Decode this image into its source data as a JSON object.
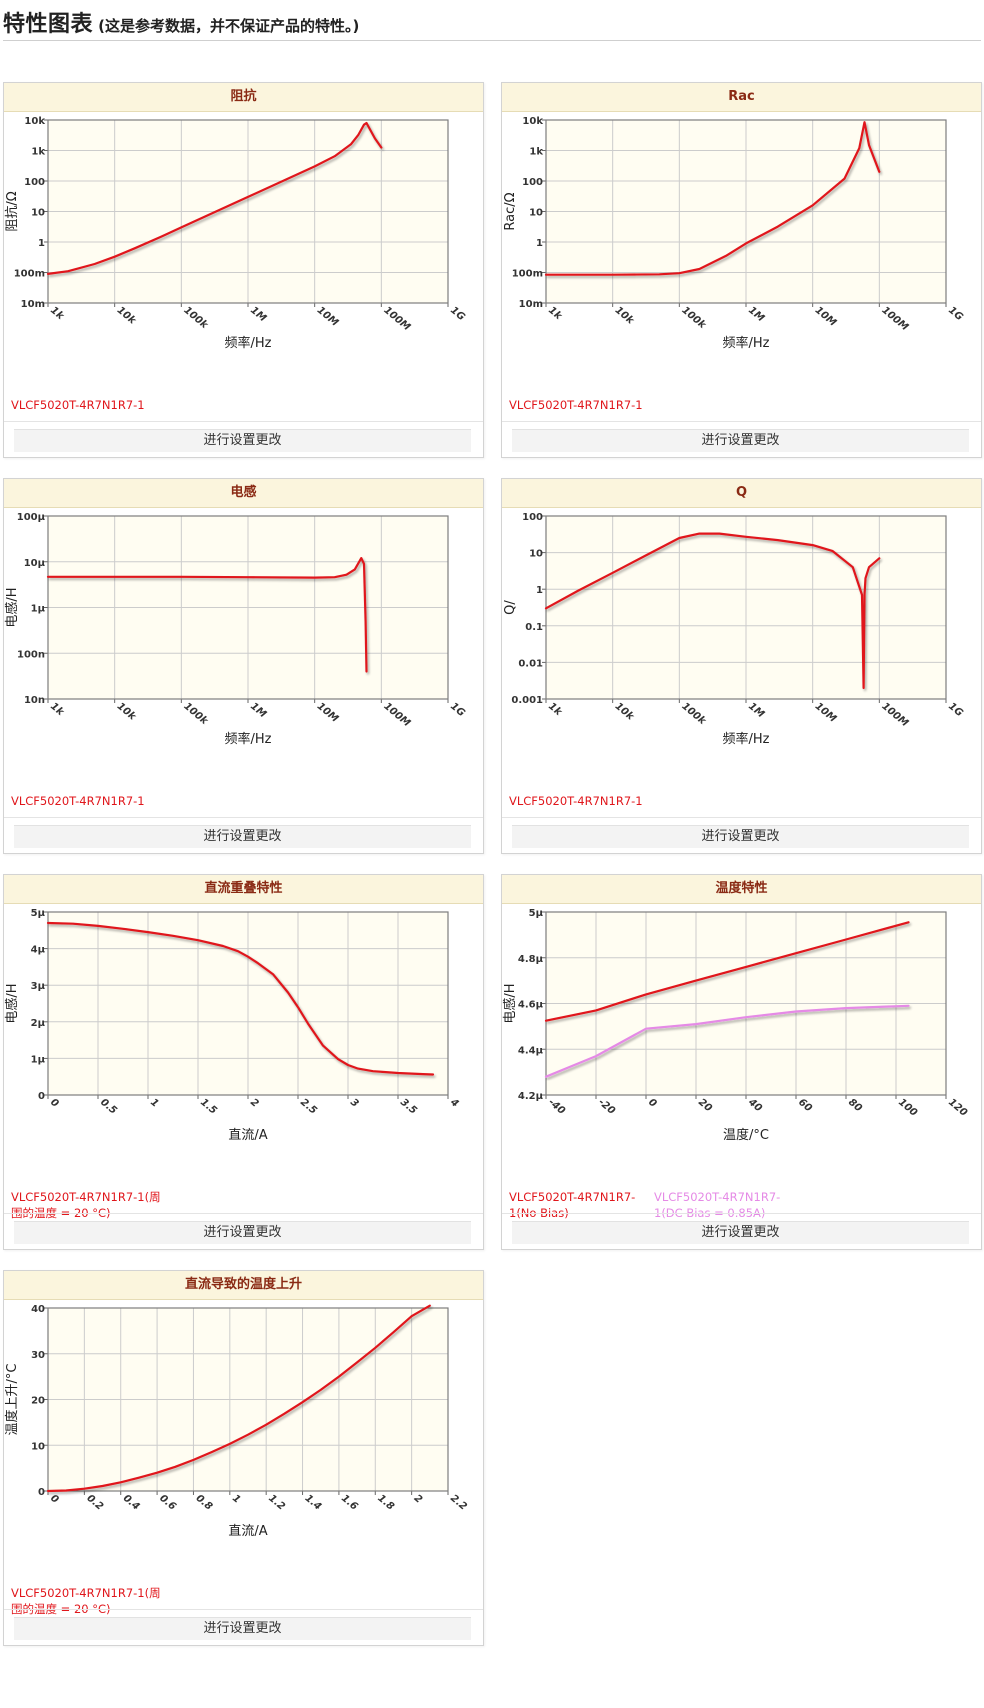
{
  "page": {
    "title": "特性图表",
    "subtitle": "(这是参考数据，并不保证产品的特性。)"
  },
  "colors": {
    "red": "#e0161b",
    "pink": "#e58ae6",
    "plotbg": "#fffdf2",
    "grid": "#cccccc",
    "title": "#8a2a14"
  },
  "charts": [
    {
      "title": "阻抗",
      "button": "进行设置更改",
      "legend": [
        {
          "label": "VLCF5020T-4R7N1R7-1",
          "color": "#e0161b"
        }
      ],
      "chart_data": {
        "type": "line",
        "xscale": "log",
        "yscale": "log",
        "xlabel": "频率/Hz",
        "ylabel": "阻抗/Ω",
        "xlim": [
          1000,
          1000000000
        ],
        "ylim": [
          0.01,
          10000
        ],
        "xticks": [
          "1k",
          "10k",
          "100k",
          "1M",
          "10M",
          "100M",
          "1G"
        ],
        "yticks": [
          "10m",
          "100m",
          "1",
          "10",
          "100",
          "1k",
          "10k"
        ],
        "series": [
          {
            "name": "VLCF5020T-4R7N1R7-1",
            "color": "#e0161b",
            "x": [
              1000,
              2000,
              5000,
              10000,
              20000,
              50000,
              100000,
              1000000,
              10000000,
              20000000,
              35000000,
              45000000,
              55000000,
              60000000,
              80000000,
              100000000
            ],
            "y": [
              0.09,
              0.11,
              0.19,
              0.33,
              0.62,
              1.5,
              3.0,
              30,
              300,
              650,
              1600,
              3200,
              7000,
              8000,
              2500,
              1250
            ]
          }
        ]
      }
    },
    {
      "title": "Rac",
      "button": "进行设置更改",
      "legend": [
        {
          "label": "VLCF5020T-4R7N1R7-1",
          "color": "#e0161b"
        }
      ],
      "chart_data": {
        "type": "line",
        "xscale": "log",
        "yscale": "log",
        "xlabel": "频率/Hz",
        "ylabel": "Rac/Ω",
        "xlim": [
          1000,
          1000000000
        ],
        "ylim": [
          0.01,
          10000
        ],
        "xticks": [
          "1k",
          "10k",
          "100k",
          "1M",
          "10M",
          "100M",
          "1G"
        ],
        "yticks": [
          "10m",
          "100m",
          "1",
          "10",
          "100",
          "1k",
          "10k"
        ],
        "series": [
          {
            "name": "VLCF5020T-4R7N1R7-1",
            "color": "#e0161b",
            "x": [
              1000,
              10000,
              50000,
              100000,
              200000,
              500000,
              1000000,
              3000000,
              10000000,
              30000000,
              50000000,
              60000000,
              70000000,
              100000000
            ],
            "y": [
              0.085,
              0.085,
              0.087,
              0.095,
              0.13,
              0.35,
              0.9,
              3.2,
              16,
              120,
              1200,
              8500,
              1500,
              200
            ]
          }
        ]
      }
    },
    {
      "title": "电感",
      "button": "进行设置更改",
      "legend": [
        {
          "label": "VLCF5020T-4R7N1R7-1",
          "color": "#e0161b"
        }
      ],
      "chart_data": {
        "type": "line",
        "xscale": "log",
        "yscale": "log",
        "xlabel": "频率/Hz",
        "ylabel": "电感/H",
        "xlim": [
          1000,
          1000000000
        ],
        "ylim": [
          1e-08,
          0.0001
        ],
        "xticks": [
          "1k",
          "10k",
          "100k",
          "1M",
          "10M",
          "100M",
          "1G"
        ],
        "yticks": [
          "10n",
          "100n",
          "1μ",
          "10μ",
          "100μ"
        ],
        "series": [
          {
            "name": "VLCF5020T-4R7N1R7-1",
            "color": "#e0161b",
            "x": [
              1000,
              10000,
              100000,
              1000000,
              10000000,
              20000000,
              30000000,
              40000000,
              50000000,
              55000000,
              58000000,
              60000000
            ],
            "y": [
              4.7e-06,
              4.7e-06,
              4.7e-06,
              4.6e-06,
              4.5e-06,
              4.6e-06,
              5.2e-06,
              6.8e-06,
              1.2e-05,
              9e-06,
              5e-07,
              4e-08
            ]
          }
        ]
      }
    },
    {
      "title": "Q",
      "button": "进行设置更改",
      "legend": [
        {
          "label": "VLCF5020T-4R7N1R7-1",
          "color": "#e0161b"
        }
      ],
      "chart_data": {
        "type": "line",
        "xscale": "log",
        "yscale": "log",
        "xlabel": "频率/Hz",
        "ylabel": "Q/",
        "xlim": [
          1000,
          1000000000
        ],
        "ylim": [
          0.001,
          100
        ],
        "xticks": [
          "1k",
          "10k",
          "100k",
          "1M",
          "10M",
          "100M",
          "1G"
        ],
        "yticks": [
          "0.001",
          "0.01",
          "0.1",
          "1",
          "10",
          "100"
        ],
        "series": [
          {
            "name": "VLCF5020T-4R7N1R7-1",
            "color": "#e0161b",
            "x": [
              1000,
              3000,
              10000,
              30000,
              100000,
              200000,
              400000,
              1000000,
              3000000,
              10000000,
              20000000,
              40000000,
              55000000,
              58000000,
              60000000,
              62000000,
              70000000,
              100000000
            ],
            "y": [
              0.3,
              0.9,
              2.8,
              8,
              25,
              33,
              33,
              27,
              22,
              16,
              11,
              4,
              0.7,
              0.002,
              0.7,
              2,
              4,
              7
            ]
          }
        ]
      }
    },
    {
      "title": "直流重叠特性",
      "button": "进行设置更改",
      "legend": [
        {
          "label": "VLCF5020T-4R7N1R7-1(周围的温度 = 20 °C)",
          "color": "#e0161b"
        }
      ],
      "chart_data": {
        "type": "line",
        "xscale": "linear",
        "yscale": "linear",
        "xlabel": "直流/A",
        "ylabel": "电感/H",
        "xlim": [
          0,
          4
        ],
        "ylim": [
          0,
          5
        ],
        "xticks": [
          "0",
          "0.5",
          "1",
          "1.5",
          "2",
          "2.5",
          "3",
          "3.5",
          "4"
        ],
        "yticks": [
          "0",
          "1μ",
          "2μ",
          "3μ",
          "4μ",
          "5μ"
        ],
        "series": [
          {
            "name": "VLCF5020T-4R7N1R7-1(周围的温度 = 20 °C)",
            "color": "#e0161b",
            "x": [
              0,
              0.25,
              0.5,
              0.75,
              1,
              1.25,
              1.5,
              1.75,
              1.9,
              2.0,
              2.1,
              2.25,
              2.4,
              2.5,
              2.6,
              2.75,
              2.9,
              3.0,
              3.1,
              3.25,
              3.5,
              3.75,
              3.85
            ],
            "y": [
              4.7,
              4.68,
              4.62,
              4.54,
              4.45,
              4.35,
              4.23,
              4.07,
              3.93,
              3.78,
              3.6,
              3.3,
              2.8,
              2.4,
              1.95,
              1.35,
              0.98,
              0.82,
              0.72,
              0.65,
              0.6,
              0.57,
              0.56
            ]
          }
        ]
      }
    },
    {
      "title": "温度特性",
      "button": "进行设置更改",
      "legend": [
        {
          "label": "VLCF5020T-4R7N1R7-1(No Bias)",
          "color": "#e0161b"
        },
        {
          "label": "VLCF5020T-4R7N1R7-1(DC Bias = 0.85A)",
          "color": "#e58ae6"
        }
      ],
      "chart_data": {
        "type": "line",
        "xscale": "linear",
        "yscale": "linear",
        "xlabel": "温度/°C",
        "ylabel": "电感/H",
        "xlim": [
          -40,
          120
        ],
        "ylim": [
          4.2,
          5.0
        ],
        "xticks": [
          "-40",
          "-20",
          "0",
          "20",
          "40",
          "60",
          "80",
          "100",
          "120"
        ],
        "yticks": [
          "4.2μ",
          "4.4μ",
          "4.6μ",
          "4.8μ",
          "5μ"
        ],
        "series": [
          {
            "name": "VLCF5020T-4R7N1R7-1(No Bias)",
            "color": "#e0161b",
            "x": [
              -40,
              -20,
              0,
              20,
              40,
              60,
              80,
              105
            ],
            "y": [
              4.525,
              4.57,
              4.64,
              4.7,
              4.76,
              4.82,
              4.88,
              4.955
            ]
          },
          {
            "name": "VLCF5020T-4R7N1R7-1(DC Bias = 0.85A)",
            "color": "#e58ae6",
            "x": [
              -40,
              -20,
              0,
              20,
              40,
              60,
              80,
              105
            ],
            "y": [
              4.28,
              4.37,
              4.49,
              4.51,
              4.54,
              4.565,
              4.58,
              4.59
            ]
          }
        ]
      }
    },
    {
      "title": "直流导致的温度上升",
      "button": "进行设置更改",
      "legend": [
        {
          "label": "VLCF5020T-4R7N1R7-1(周围的温度 = 20 °C)",
          "color": "#e0161b"
        }
      ],
      "chart_data": {
        "type": "line",
        "xscale": "linear",
        "yscale": "linear",
        "xlabel": "直流/A",
        "ylabel": "温度上升/°C",
        "xlim": [
          0,
          2.2
        ],
        "ylim": [
          0,
          40
        ],
        "xticks": [
          "0",
          "0.2",
          "0.4",
          "0.6",
          "0.8",
          "1",
          "1.2",
          "1.4",
          "1.6",
          "1.8",
          "2",
          "2.2"
        ],
        "yticks": [
          "0",
          "10",
          "20",
          "30",
          "40"
        ],
        "series": [
          {
            "name": "VLCF5020T-4R7N1R7-1(周围的温度 = 20 °C)",
            "color": "#e0161b",
            "x": [
              0,
              0.1,
              0.2,
              0.3,
              0.4,
              0.5,
              0.6,
              0.7,
              0.8,
              0.9,
              1.0,
              1.1,
              1.2,
              1.3,
              1.4,
              1.5,
              1.6,
              1.7,
              1.8,
              1.9,
              2.0,
              2.1
            ],
            "y": [
              0,
              0.12,
              0.5,
              1.1,
              1.9,
              2.9,
              4.0,
              5.3,
              6.8,
              8.5,
              10.3,
              12.3,
              14.5,
              16.9,
              19.4,
              22.1,
              25.0,
              28.1,
              31.3,
              34.7,
              38.2,
              40.5
            ]
          }
        ]
      }
    }
  ]
}
